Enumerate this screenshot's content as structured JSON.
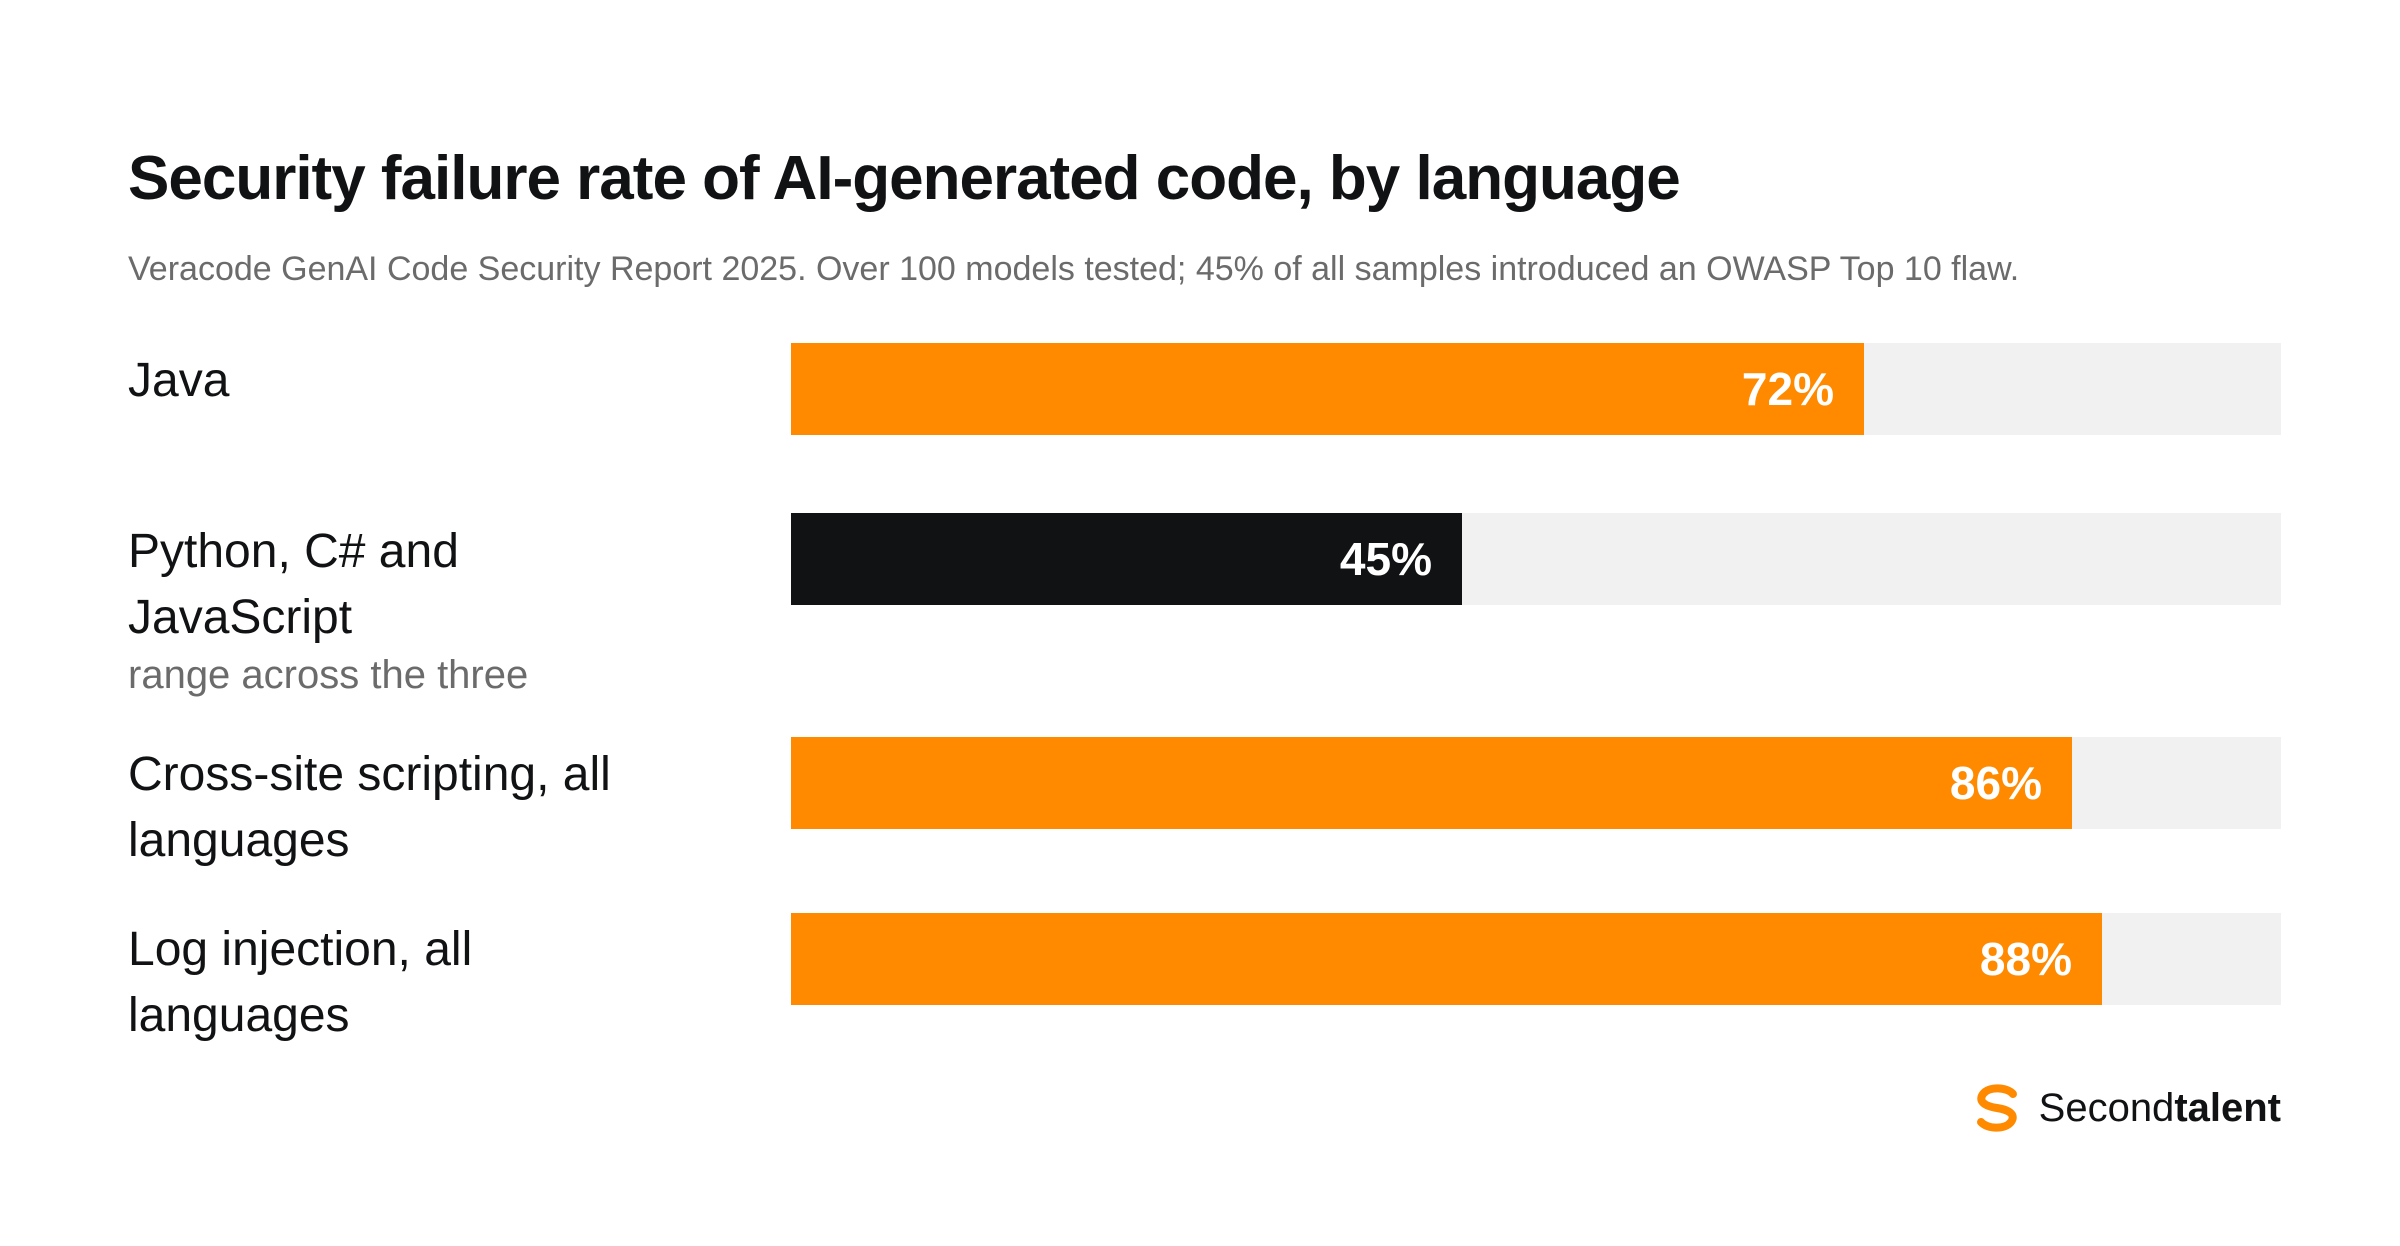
{
  "title": "Security failure rate of AI-generated code, by language",
  "subtitle": "Veracode GenAI Code Security Report 2025. Over 100 models tested; 45% of all samples introduced an OWASP Top 10 flaw.",
  "colors": {
    "orange": "#ff8a00",
    "dark": "#111214",
    "track": "#f0f1f0"
  },
  "chart_data": {
    "type": "bar",
    "orientation": "horizontal",
    "title": "Security failure rate of AI-generated code, by language",
    "subtitle": "Veracode GenAI Code Security Report 2025. Over 100 models tested; 45% of all samples introduced an OWASP Top 10 flaw.",
    "xlim": [
      0,
      100
    ],
    "grid": false,
    "categories": [
      "Java",
      "Python, C# and JavaScript",
      "Cross-site scripting, all languages",
      "Log injection, all languages"
    ],
    "values": [
      72,
      45,
      86,
      88
    ],
    "value_labels": [
      "72%",
      "45%",
      "86%",
      "88%"
    ],
    "sublabels": [
      "",
      "range across the three",
      "",
      ""
    ],
    "bar_colors": [
      "#ff8a00",
      "#111214",
      "#ff8a00",
      "#ff8a00"
    ]
  },
  "brand": {
    "name_part1": "Second",
    "name_part2": "talent",
    "icon": "secondtalent-s-logo-icon"
  }
}
